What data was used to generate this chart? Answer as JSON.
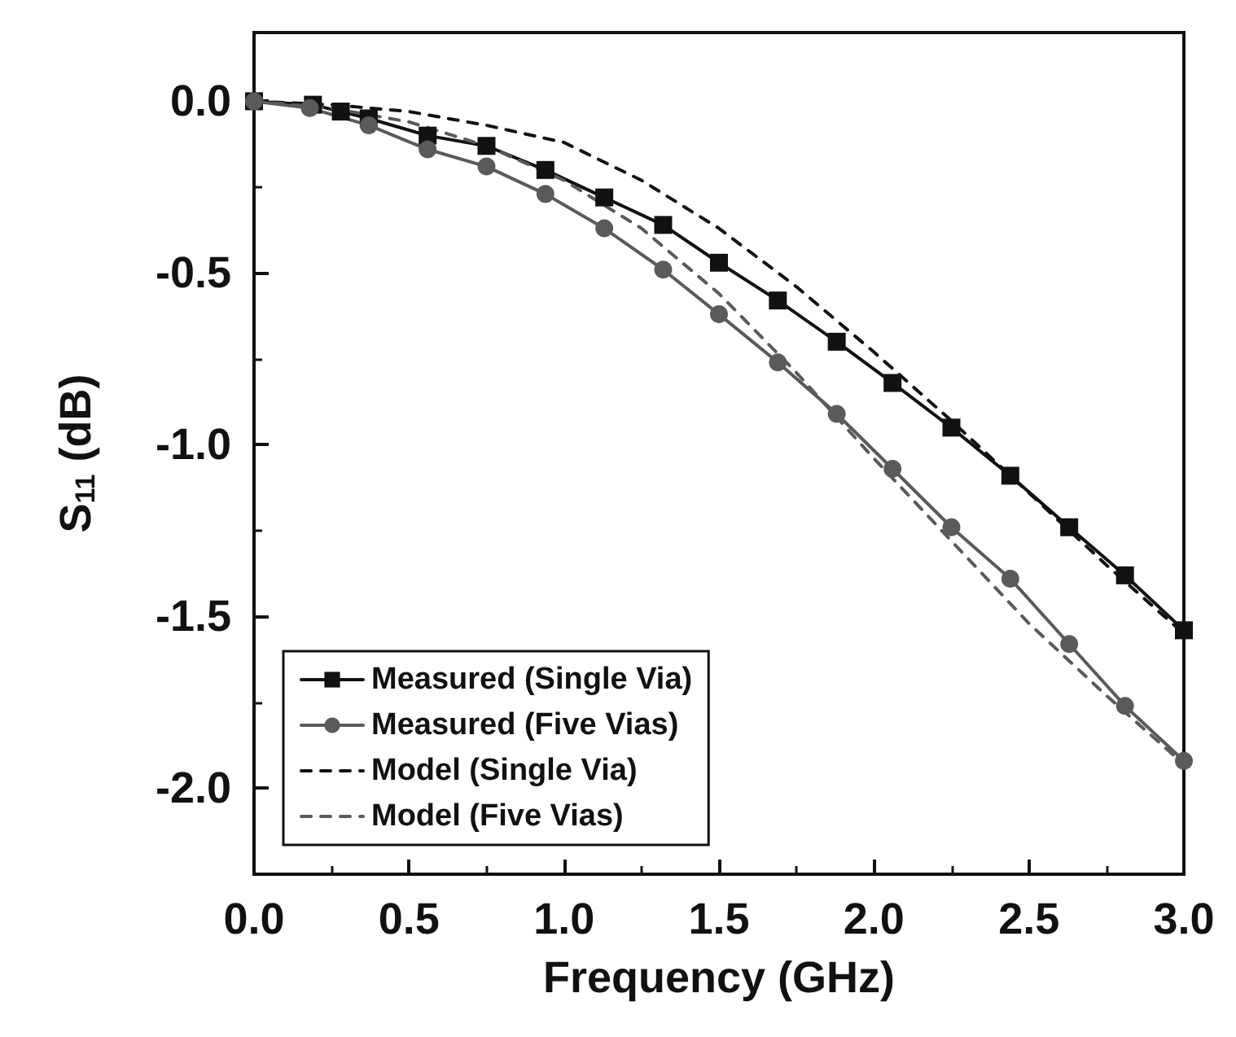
{
  "chart_data": {
    "type": "line",
    "xlabel": "Frequency (GHz)",
    "ylabel": "S$_{11}$ (dB)",
    "xlim": [
      0,
      3.0
    ],
    "ylim": [
      -2.25,
      0.2
    ],
    "xticks": [
      {
        "value": 0,
        "label": "0.0"
      },
      {
        "value": 0.5,
        "label": "0.5"
      },
      {
        "value": 1,
        "label": "1.0"
      },
      {
        "value": 1.5,
        "label": "1.5"
      },
      {
        "value": 2,
        "label": "2.0"
      },
      {
        "value": 2.5,
        "label": "2.5"
      },
      {
        "value": 3,
        "label": "3.0"
      }
    ],
    "yticks": [
      {
        "value": 0,
        "label": "0.0"
      },
      -0.5,
      {
        "value": -1,
        "label": "-1.0"
      },
      -1.5,
      {
        "value": -2,
        "label": "-2.0"
      }
    ],
    "grid": false,
    "legend": "bottom left",
    "series": [
      {
        "name": "Measured (Single Via)",
        "color": "#111111",
        "marker": "square",
        "line_style": "solid",
        "x": [
          0,
          0.19,
          0.28,
          0.37,
          0.56,
          0.75,
          0.94,
          1.13,
          1.32,
          1.5,
          1.69,
          1.88,
          2.06,
          2.25,
          2.44,
          2.63,
          2.81,
          3.0
        ],
        "values": [
          0,
          -0.01,
          -0.03,
          -0.05,
          -0.1,
          -0.13,
          -0.2,
          -0.28,
          -0.36,
          -0.47,
          -0.58,
          -0.7,
          -0.82,
          -0.95,
          -1.09,
          -1.24,
          -1.38,
          -1.54
        ]
      },
      {
        "name": "Measured (Five Vias)",
        "color": "#5a5a5a",
        "marker": "circle",
        "line_style": "solid",
        "x": [
          0,
          0.18,
          0.37,
          0.56,
          0.75,
          0.94,
          1.13,
          1.32,
          1.5,
          1.69,
          1.88,
          2.06,
          2.25,
          2.44,
          2.63,
          2.81,
          3.0
        ],
        "values": [
          0,
          -0.02,
          -0.07,
          -0.14,
          -0.19,
          -0.27,
          -0.37,
          -0.49,
          -0.62,
          -0.76,
          -0.91,
          -1.07,
          -1.24,
          -1.39,
          -1.58,
          -1.76,
          -1.92
        ]
      },
      {
        "name": "Model (Single Via)",
        "color": "#111111",
        "marker": "none",
        "line_style": "dashed",
        "x": [
          0,
          0.25,
          0.5,
          0.75,
          1.0,
          1.25,
          1.5,
          1.75,
          2.0,
          2.25,
          2.5,
          2.75,
          3.0
        ],
        "values": [
          0,
          -0.01,
          -0.03,
          -0.07,
          -0.12,
          -0.23,
          -0.37,
          -0.54,
          -0.73,
          -0.93,
          -1.14,
          -1.35,
          -1.55
        ]
      },
      {
        "name": "Model (Five Vias)",
        "color": "#5a5a5a",
        "marker": "none",
        "line_style": "dashed",
        "x": [
          0,
          0.25,
          0.5,
          0.75,
          1.0,
          1.25,
          1.5,
          1.75,
          2.0,
          2.25,
          2.5,
          2.75,
          3.0
        ],
        "values": [
          0,
          -0.02,
          -0.06,
          -0.13,
          -0.23,
          -0.37,
          -0.56,
          -0.79,
          -1.04,
          -1.28,
          -1.52,
          -1.73,
          -1.93
        ]
      }
    ]
  }
}
